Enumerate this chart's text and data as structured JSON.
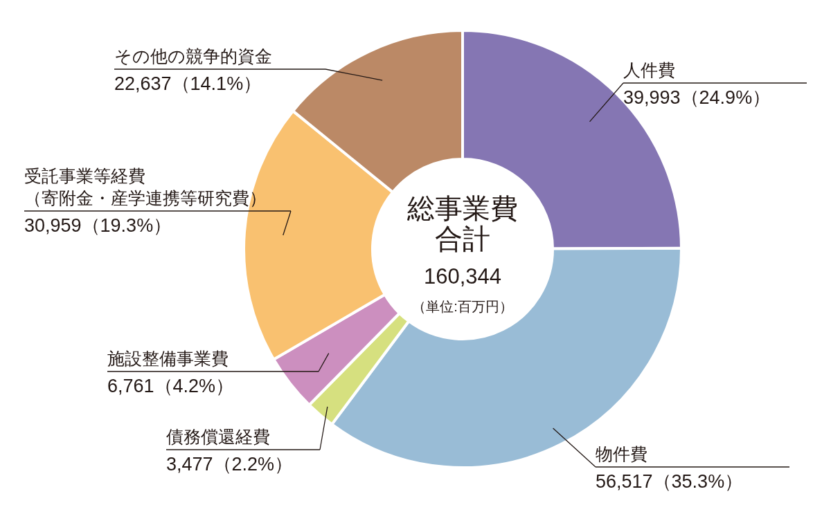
{
  "chart_data": {
    "type": "donut",
    "title": "総事業費合計",
    "annotations": [
      "160,344",
      "（単位:百万円）"
    ],
    "categories": [
      "人件費",
      "物件費",
      "債務償還経費",
      "施設整備事業費",
      "受託事業等経費（寄附金・産学連携等研究費）",
      "その他の競争的資金"
    ],
    "values": [
      39993,
      56517,
      3477,
      6761,
      30959,
      22637
    ],
    "colors": [
      "#8576b3",
      "#99bcd6",
      "#d6e07f",
      "#cc8fbf",
      "#f9c170",
      "#bb8966"
    ],
    "value_labels": [
      "39,993（24.9%）",
      "56,517（35.3%）",
      "3,477（2.2%）",
      "6,761（4.2%）",
      "30,959（19.3%）",
      "22,637（14.1%）"
    ]
  }
}
